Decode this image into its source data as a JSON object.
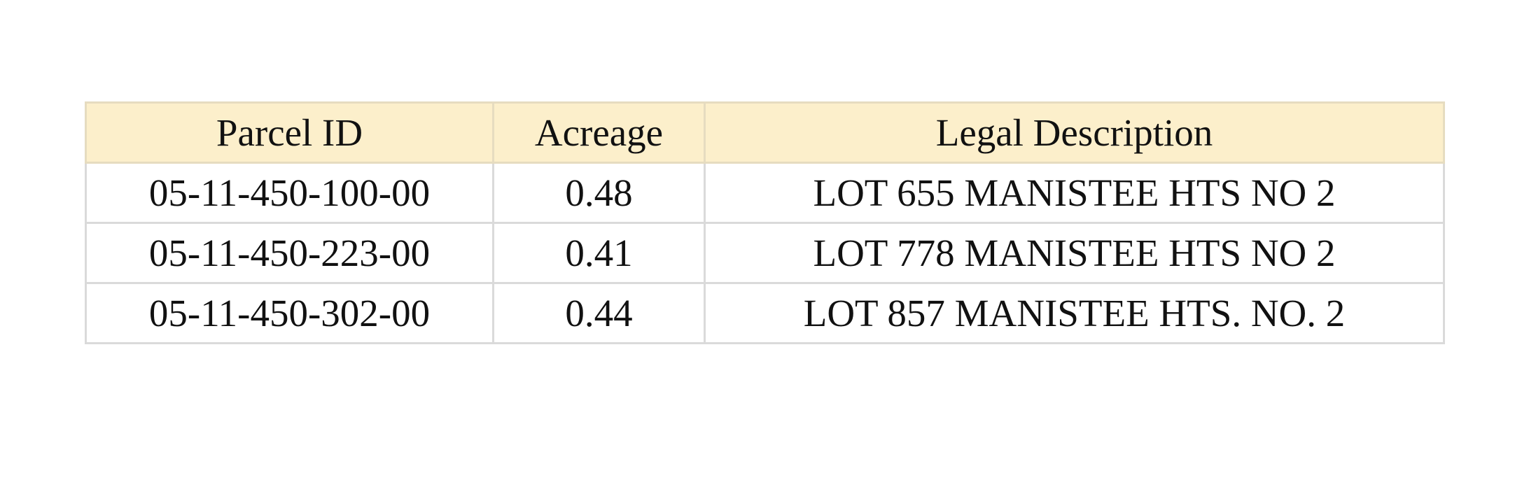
{
  "table": {
    "headers": [
      "Parcel ID",
      "Acreage",
      "Legal Description"
    ],
    "rows": [
      [
        "05-11-450-100-00",
        "0.48",
        "LOT 655 MANISTEE HTS NO 2"
      ],
      [
        "05-11-450-223-00",
        "0.41",
        "LOT 778 MANISTEE HTS NO 2"
      ],
      [
        "05-11-450-302-00",
        "0.44",
        "LOT 857 MANISTEE HTS. NO. 2"
      ]
    ]
  },
  "colors": {
    "header_background": "#fcefcb",
    "border": "#dadada",
    "text": "#111111"
  }
}
